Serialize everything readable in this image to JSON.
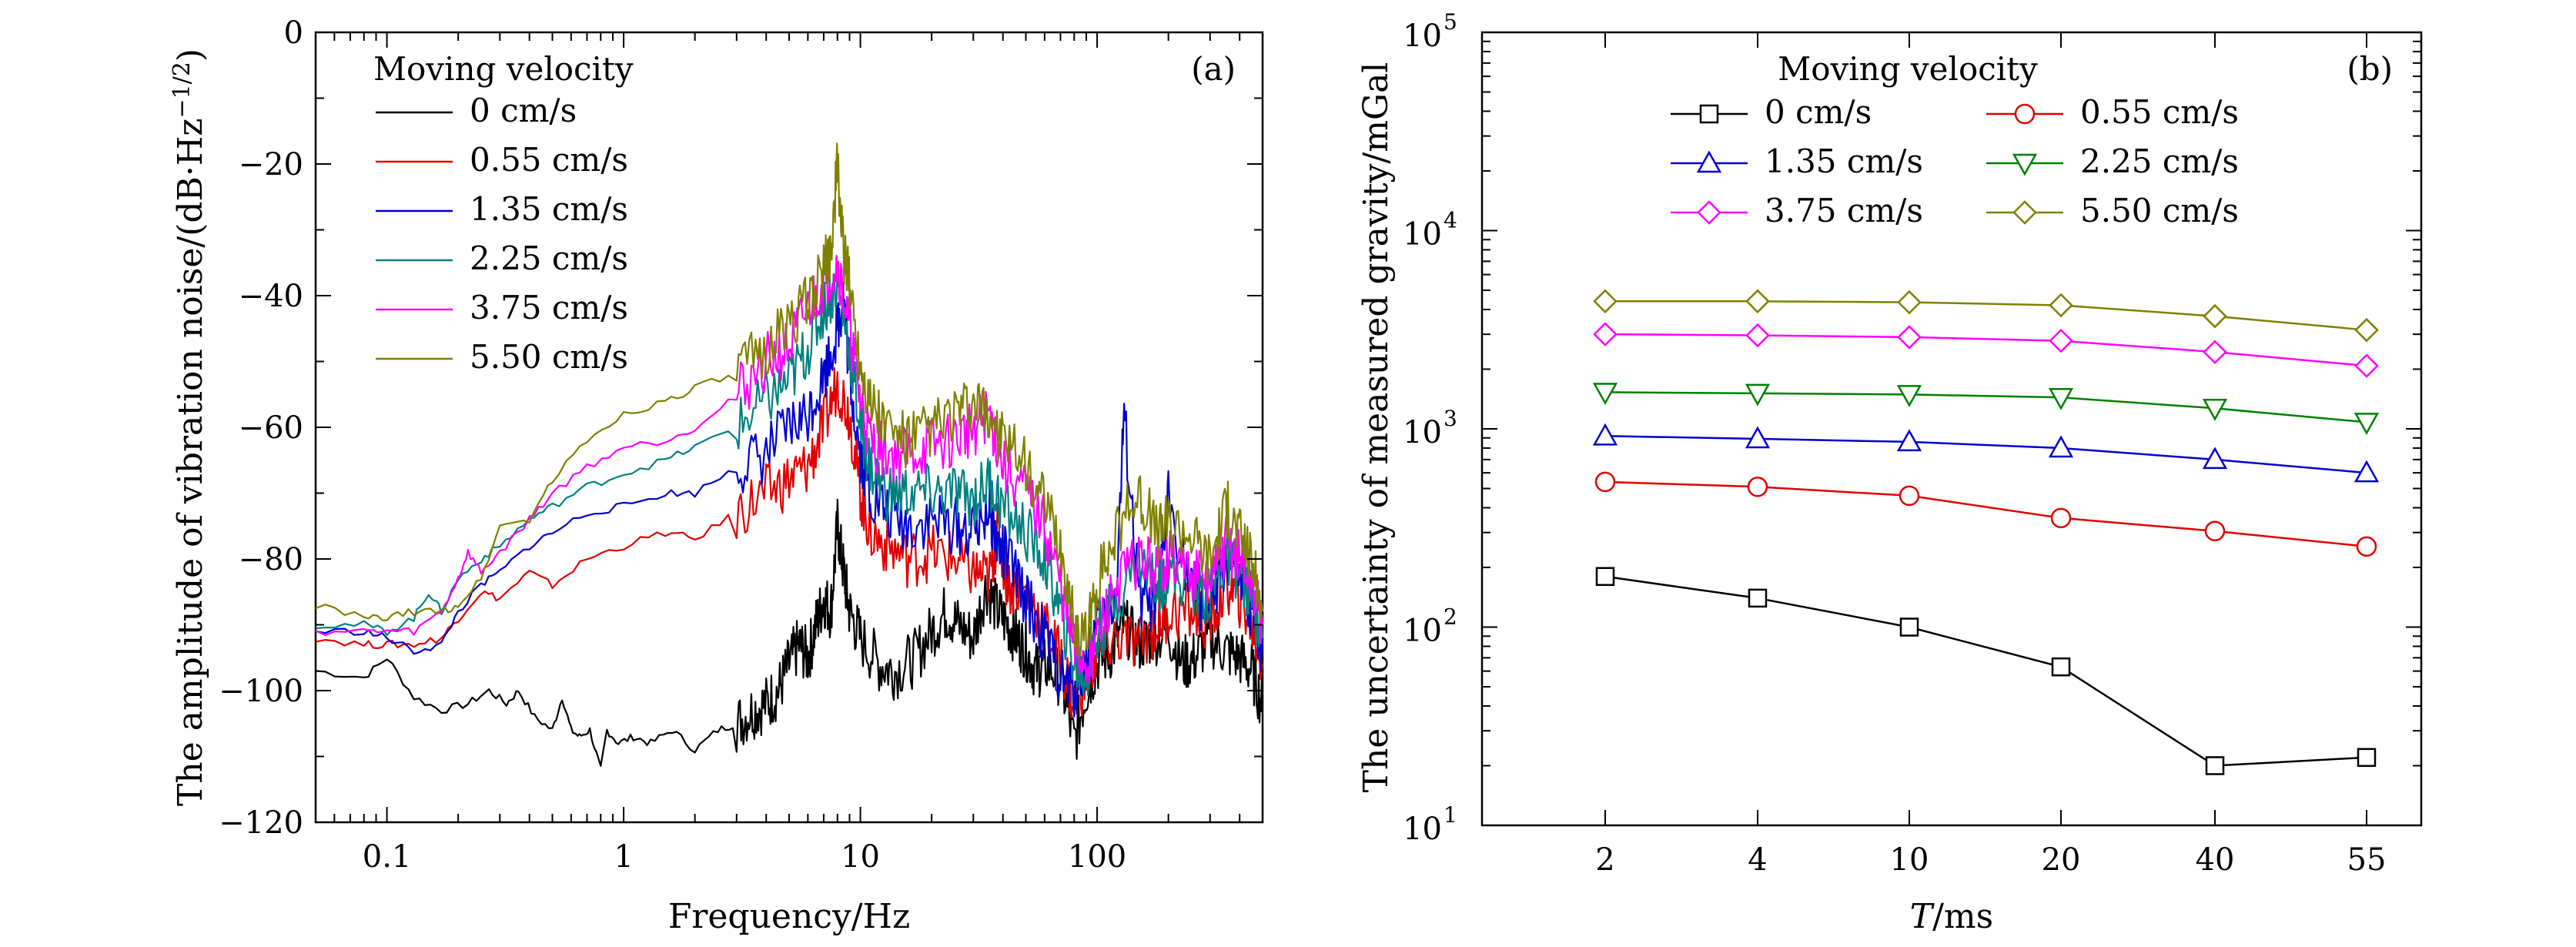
{
  "chart_data": [
    {
      "type": "line",
      "panel_label": "(a)",
      "xlabel": "Frequency/Hz",
      "ylabel": "The amplitude of vibration noise/(dB·Hz",
      "ylabel_sup": "−1/2",
      "ylabel_end": ")",
      "xscale": "log",
      "xlim": [
        0.05,
        500
      ],
      "ylim": [
        -120,
        0
      ],
      "xticks": [
        {
          "value": 0.1,
          "label": "0.1"
        },
        {
          "value": 1,
          "label": "1"
        },
        {
          "value": 10,
          "label": "10"
        },
        {
          "value": 100,
          "label": "100"
        }
      ],
      "yticks": [
        {
          "value": 0,
          "label": "0"
        },
        {
          "value": -20,
          "label": "−20"
        },
        {
          "value": -40,
          "label": "−40"
        },
        {
          "value": -60,
          "label": "−60"
        },
        {
          "value": -80,
          "label": "−80"
        },
        {
          "value": -100,
          "label": "−100"
        },
        {
          "value": -120,
          "label": "−120"
        }
      ],
      "legend_title": "Moving velocity",
      "legend_position": "top-left",
      "series": [
        {
          "name": "0 cm/s",
          "color": "#000000",
          "x": [
            0.05,
            0.08,
            0.1,
            0.13,
            0.17,
            0.22,
            0.27,
            0.32,
            0.36,
            0.42,
            0.5,
            0.55,
            0.6,
            0.65,
            0.72,
            0.8,
            0.85,
            0.95,
            1.1,
            1.3,
            1.6,
            2,
            2.5,
            3,
            3.5,
            4,
            4.5,
            5,
            5.5,
            6,
            6.5,
            7,
            7.5,
            8,
            8.5,
            9,
            10,
            12,
            14,
            17,
            20,
            23,
            26,
            30,
            34,
            38,
            42,
            46,
            50,
            55,
            60,
            70,
            80,
            90,
            100,
            115,
            130,
            150,
            170,
            200,
            230,
            260,
            300,
            350,
            400,
            450,
            500
          ],
          "y": [
            -97,
            -98,
            -95,
            -101,
            -103,
            -102,
            -100,
            -102,
            -100,
            -104,
            -106,
            -101,
            -106,
            -107,
            -106,
            -112,
            -106,
            -108,
            -107,
            -108,
            -106,
            -109,
            -106,
            -105,
            -103,
            -102,
            -100,
            -96,
            -93,
            -95,
            -90,
            -86,
            -88,
            -75,
            -82,
            -88,
            -92,
            -96,
            -97,
            -95,
            -91,
            -88,
            -90,
            -92,
            -84,
            -88,
            -90,
            -92,
            -94,
            -97,
            -96,
            -98,
            -108,
            -100,
            -96,
            -94,
            -90,
            -93,
            -92,
            -91,
            -96,
            -95,
            -92,
            -94,
            -95,
            -97,
            -102
          ]
        },
        {
          "name": "0.55 cm/s",
          "color": "#e00000",
          "x": [
            0.05,
            0.08,
            0.1,
            0.13,
            0.17,
            0.2,
            0.25,
            0.3,
            0.4,
            0.5,
            0.7,
            1,
            1.5,
            2,
            3,
            4,
            5,
            6,
            7,
            8,
            9,
            10,
            11,
            13,
            16,
            20,
            25,
            30,
            35,
            38,
            42,
            50,
            60,
            70,
            80,
            90,
            100,
            120,
            150,
            180,
            200,
            250,
            300,
            350,
            400,
            450,
            500
          ],
          "y": [
            -92,
            -93,
            -93,
            -93,
            -92,
            -89,
            -85,
            -86,
            -82,
            -84,
            -80,
            -78,
            -76,
            -77,
            -73,
            -70,
            -68,
            -66,
            -60,
            -53,
            -58,
            -70,
            -76,
            -78,
            -80,
            -79,
            -80,
            -82,
            -83,
            -76,
            -84,
            -85,
            -90,
            -95,
            -102,
            -98,
            -95,
            -92,
            -93,
            -90,
            -88,
            -88,
            -90,
            -84,
            -86,
            -90,
            -96
          ]
        },
        {
          "name": "1.35 cm/s",
          "color": "#0000d0",
          "x": [
            0.05,
            0.08,
            0.1,
            0.13,
            0.17,
            0.2,
            0.25,
            0.3,
            0.4,
            0.5,
            0.7,
            1,
            1.5,
            2,
            3,
            4,
            5,
            6,
            7,
            8,
            8.5,
            9,
            10,
            11,
            13,
            16,
            20,
            25,
            30,
            35,
            38,
            42,
            50,
            60,
            70,
            80,
            90,
            100,
            120,
            130,
            150,
            180,
            200,
            250,
            300,
            350,
            400,
            450,
            500
          ],
          "y": [
            -91,
            -91,
            -92,
            -94,
            -93,
            -88,
            -84,
            -82,
            -78,
            -76,
            -73,
            -72,
            -70,
            -70,
            -66,
            -64,
            -60,
            -58,
            -52,
            -45,
            -40,
            -52,
            -64,
            -70,
            -73,
            -75,
            -74,
            -75,
            -76,
            -72,
            -78,
            -80,
            -86,
            -92,
            -98,
            -100,
            -96,
            -90,
            -86,
            -58,
            -86,
            -88,
            -70,
            -85,
            -88,
            -80,
            -84,
            -88,
            -94
          ]
        },
        {
          "name": "2.25 cm/s",
          "color": "#008080",
          "x": [
            0.05,
            0.08,
            0.1,
            0.13,
            0.15,
            0.17,
            0.2,
            0.25,
            0.3,
            0.4,
            0.5,
            0.7,
            1,
            1.5,
            2,
            3,
            4,
            5,
            6,
            7,
            8,
            9,
            10,
            11,
            13,
            16,
            20,
            25,
            30,
            35,
            40,
            50,
            60,
            70,
            80,
            90,
            100,
            120,
            150,
            180,
            200,
            250,
            300,
            350,
            400,
            450,
            500
          ],
          "y": [
            -90,
            -90,
            -91,
            -89,
            -85,
            -88,
            -83,
            -80,
            -78,
            -74,
            -72,
            -69,
            -67,
            -65,
            -63,
            -60,
            -56,
            -53,
            -48,
            -42,
            -38,
            -48,
            -60,
            -66,
            -70,
            -70,
            -70,
            -70,
            -71,
            -68,
            -72,
            -76,
            -80,
            -88,
            -96,
            -98,
            -92,
            -86,
            -80,
            -84,
            -82,
            -84,
            -86,
            -80,
            -82,
            -86,
            -92
          ]
        },
        {
          "name": "3.75 cm/s",
          "color": "#ff00ff",
          "x": [
            0.05,
            0.08,
            0.1,
            0.13,
            0.17,
            0.2,
            0.22,
            0.25,
            0.3,
            0.4,
            0.5,
            0.7,
            1,
            1.5,
            2,
            3,
            4,
            5,
            6,
            7,
            8,
            9,
            10,
            11,
            13,
            16,
            20,
            25,
            30,
            35,
            40,
            50,
            60,
            70,
            80,
            90,
            100,
            120,
            150,
            180,
            200,
            250,
            300,
            350,
            400,
            450,
            500
          ],
          "y": [
            -91,
            -91,
            -91,
            -91,
            -88,
            -83,
            -79,
            -82,
            -79,
            -74,
            -70,
            -66,
            -63,
            -62,
            -60,
            -55,
            -50,
            -48,
            -42,
            -38,
            -35,
            -45,
            -56,
            -62,
            -64,
            -64,
            -63,
            -62,
            -60,
            -58,
            -66,
            -70,
            -75,
            -84,
            -94,
            -96,
            -92,
            -84,
            -80,
            -82,
            -80,
            -82,
            -84,
            -78,
            -80,
            -84,
            -90
          ]
        },
        {
          "name": "5.50 cm/s",
          "color": "#808000",
          "x": [
            0.05,
            0.08,
            0.1,
            0.13,
            0.17,
            0.2,
            0.25,
            0.3,
            0.4,
            0.5,
            0.7,
            1,
            1.5,
            2,
            3,
            4,
            5,
            6,
            7,
            7.5,
            8,
            8.5,
            9,
            10,
            11,
            13,
            16,
            20,
            25,
            30,
            35,
            40,
            50,
            60,
            70,
            80,
            90,
            100,
            120,
            150,
            180,
            200,
            250,
            300,
            350,
            400,
            450,
            500
          ],
          "y": [
            -87,
            -89,
            -89,
            -88,
            -88,
            -87,
            -83,
            -75,
            -74,
            -68,
            -62,
            -58,
            -56,
            -54,
            -52,
            -48,
            -44,
            -41,
            -36,
            -33,
            -20,
            -34,
            -38,
            -50,
            -56,
            -60,
            -62,
            -60,
            -58,
            -57,
            -58,
            -62,
            -66,
            -72,
            -78,
            -90,
            -92,
            -84,
            -76,
            -70,
            -76,
            -74,
            -76,
            -80,
            -72,
            -76,
            -80,
            -88
          ]
        }
      ]
    },
    {
      "type": "line",
      "panel_label": "(b)",
      "xlabel_italic": "T",
      "xlabel_rest": "/ms",
      "ylabel": "The uncertainty of measured gravity/mGal",
      "yscale": "log",
      "ylim": [
        10,
        100000
      ],
      "categories": [
        "2",
        "4",
        "10",
        "20",
        "40",
        "55"
      ],
      "yticks": [
        {
          "value": 10,
          "base": "10",
          "exp": "1"
        },
        {
          "value": 100,
          "base": "10",
          "exp": "2"
        },
        {
          "value": 1000,
          "base": "10",
          "exp": "3"
        },
        {
          "value": 10000,
          "base": "10",
          "exp": "4"
        },
        {
          "value": 100000,
          "base": "10",
          "exp": "5"
        }
      ],
      "legend_title": "Moving velocity",
      "legend_position": "top",
      "series": [
        {
          "name": "0 cm/s",
          "color": "#000000",
          "marker": "square",
          "values": [
            180,
            140,
            100,
            63,
            20,
            22
          ]
        },
        {
          "name": "0.55 cm/s",
          "color": "#e00000",
          "marker": "circle",
          "values": [
            540,
            510,
            460,
            355,
            305,
            255
          ]
        },
        {
          "name": "1.35 cm/s",
          "color": "#0000d0",
          "marker": "triangle-up",
          "values": [
            920,
            890,
            860,
            800,
            700,
            600
          ]
        },
        {
          "name": "2.25 cm/s",
          "color": "#008000",
          "marker": "triangle-down",
          "values": [
            1530,
            1510,
            1490,
            1440,
            1270,
            1080
          ]
        },
        {
          "name": "3.75 cm/s",
          "color": "#ff00ff",
          "marker": "diamond",
          "values": [
            3000,
            2960,
            2900,
            2780,
            2440,
            2080
          ]
        },
        {
          "name": "5.50 cm/s",
          "color": "#808000",
          "marker": "diamond",
          "values": [
            4400,
            4400,
            4350,
            4200,
            3700,
            3150
          ]
        }
      ]
    }
  ]
}
